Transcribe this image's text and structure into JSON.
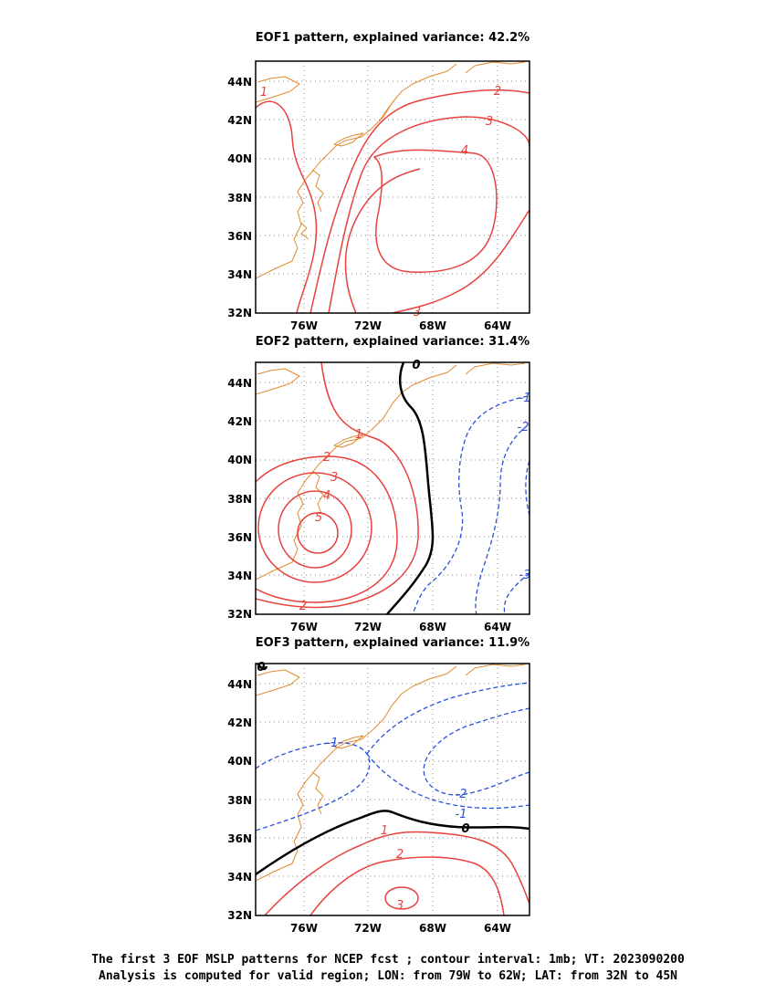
{
  "caption": {
    "line1": "The first 3 EOF MSLP patterns for NCEP fcst ; contour interval: 1mb; VT: 2023090200",
    "line2": "Analysis is computed for valid region; LON: from 79W to 62W; LAT: from 32N to 45N"
  },
  "colors": {
    "positive": "#e8413e",
    "negative": "#2a4fd8",
    "zero": "#000000",
    "coast": "#e08a2e",
    "grid": "#888888"
  },
  "chart_data": [
    {
      "type": "contour",
      "title": "EOF1 pattern, explained variance: 42.2%",
      "explained_variance_percent": 42.2,
      "xlim": [
        -79,
        -62
      ],
      "ylim": [
        32,
        45
      ],
      "xticks": [
        "76W",
        "72W",
        "68W",
        "64W"
      ],
      "yticks": [
        "32N",
        "34N",
        "36N",
        "38N",
        "40N",
        "42N",
        "44N"
      ],
      "contour_labels": [
        "1",
        "2",
        "3",
        "4",
        "3"
      ]
    },
    {
      "type": "contour",
      "title": "EOF2 pattern, explained variance: 31.4%",
      "explained_variance_percent": 31.4,
      "xlim": [
        -79,
        -62
      ],
      "ylim": [
        32,
        45
      ],
      "xticks": [
        "76W",
        "72W",
        "68W",
        "64W"
      ],
      "yticks": [
        "32N",
        "34N",
        "36N",
        "38N",
        "40N",
        "42N",
        "44N"
      ],
      "contour_labels": [
        "1",
        "2",
        "3",
        "4",
        "5",
        "2",
        "0",
        "-1",
        "-2",
        "-3"
      ]
    },
    {
      "type": "contour",
      "title": "EOF3 pattern, explained variance: 11.9%",
      "explained_variance_percent": 11.9,
      "xlim": [
        -79,
        -62
      ],
      "ylim": [
        32,
        45
      ],
      "xticks": [
        "76W",
        "72W",
        "68W",
        "64W"
      ],
      "yticks": [
        "32N",
        "34N",
        "36N",
        "38N",
        "40N",
        "42N",
        "44N"
      ],
      "contour_labels": [
        "0",
        "-1",
        "-2",
        "-1",
        "0",
        "1",
        "2",
        "3"
      ]
    }
  ]
}
